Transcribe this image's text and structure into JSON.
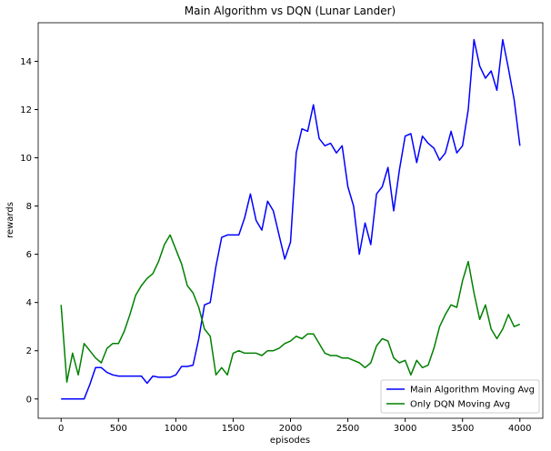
{
  "chart_data": {
    "type": "line",
    "title": "Main Algorithm vs DQN (Lunar Lander)",
    "x_label": "episodes",
    "y_label": "rewards",
    "x": [
      0,
      50,
      100,
      150,
      200,
      250,
      300,
      350,
      400,
      450,
      500,
      550,
      600,
      650,
      700,
      750,
      800,
      850,
      900,
      950,
      1000,
      1050,
      1100,
      1150,
      1200,
      1250,
      1300,
      1350,
      1400,
      1450,
      1500,
      1550,
      1600,
      1650,
      1700,
      1750,
      1800,
      1850,
      1900,
      1950,
      2000,
      2050,
      2100,
      2150,
      2200,
      2250,
      2300,
      2350,
      2400,
      2450,
      2500,
      2550,
      2600,
      2650,
      2700,
      2750,
      2800,
      2850,
      2900,
      2950,
      3000,
      3050,
      3100,
      3150,
      3200,
      3250,
      3300,
      3350,
      3400,
      3450,
      3500,
      3550,
      3600,
      3650,
      3700,
      3750,
      3800,
      3850,
      3900,
      3950,
      4000
    ],
    "series": [
      {
        "name": "Main Algorithm Moving Avg",
        "color": "#0000ff",
        "values": [
          0,
          0,
          0,
          0,
          0,
          0.6,
          1.3,
          1.3,
          1.1,
          1.0,
          0.95,
          0.95,
          0.95,
          0.95,
          0.95,
          0.65,
          0.95,
          0.9,
          0.9,
          0.9,
          1.0,
          1.35,
          1.35,
          1.4,
          2.5,
          3.9,
          4.0,
          5.5,
          6.7,
          6.8,
          6.8,
          6.8,
          7.5,
          8.5,
          7.4,
          7.0,
          8.2,
          7.8,
          6.8,
          5.8,
          6.5,
          10.2,
          11.2,
          11.1,
          12.2,
          10.8,
          10.5,
          10.6,
          10.2,
          10.5,
          8.8,
          8.0,
          6.0,
          7.3,
          6.4,
          8.5,
          8.8,
          9.6,
          7.8,
          9.5,
          10.9,
          11.0,
          9.8,
          10.9,
          10.6,
          10.4,
          9.9,
          10.2,
          11.1,
          10.2,
          10.5,
          12.0,
          14.9,
          13.8,
          13.3,
          13.6,
          12.8,
          14.9,
          13.7,
          12.4,
          10.5
        ]
      },
      {
        "name": "Only DQN Moving Avg",
        "color": "#008000",
        "values": [
          3.9,
          0.7,
          1.9,
          1.0,
          2.3,
          2.0,
          1.7,
          1.5,
          2.1,
          2.3,
          2.3,
          2.8,
          3.5,
          4.3,
          4.7,
          5.0,
          5.2,
          5.7,
          6.4,
          6.8,
          6.2,
          5.6,
          4.7,
          4.4,
          3.8,
          2.9,
          2.6,
          1.0,
          1.3,
          1.0,
          1.9,
          2.0,
          1.9,
          1.9,
          1.9,
          1.8,
          2.0,
          2.0,
          2.1,
          2.3,
          2.4,
          2.6,
          2.5,
          2.7,
          2.7,
          2.3,
          1.9,
          1.8,
          1.8,
          1.7,
          1.7,
          1.6,
          1.5,
          1.3,
          1.5,
          2.2,
          2.5,
          2.4,
          1.7,
          1.5,
          1.6,
          1.0,
          1.6,
          1.3,
          1.4,
          2.1,
          3.0,
          3.5,
          3.9,
          3.8,
          4.9,
          5.7,
          4.4,
          3.3,
          3.9,
          2.9,
          2.5,
          2.9,
          3.5,
          3.0,
          3.1
        ]
      }
    ],
    "xlim": [
      -200,
      4200
    ],
    "ylim": [
      -0.8,
      15.6
    ],
    "xticks": [
      0,
      500,
      1000,
      1500,
      2000,
      2500,
      3000,
      3500,
      4000
    ],
    "yticks": [
      0,
      2,
      4,
      6,
      8,
      10,
      12,
      14
    ],
    "legend": "lower right"
  }
}
